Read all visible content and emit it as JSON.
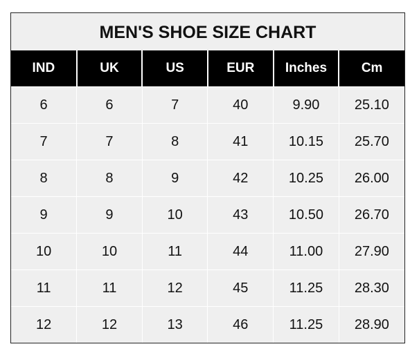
{
  "chart_data": {
    "type": "table",
    "title": "MEN'S SHOE SIZE CHART",
    "columns": [
      "IND",
      "UK",
      "US",
      "EUR",
      "Inches",
      "Cm"
    ],
    "rows": [
      [
        "6",
        "6",
        "7",
        "40",
        "9.90",
        "25.10"
      ],
      [
        "7",
        "7",
        "8",
        "41",
        "10.15",
        "25.70"
      ],
      [
        "8",
        "8",
        "9",
        "42",
        "10.25",
        "26.00"
      ],
      [
        "9",
        "9",
        "10",
        "43",
        "10.50",
        "26.70"
      ],
      [
        "10",
        "10",
        "11",
        "44",
        "11.00",
        "27.90"
      ],
      [
        "11",
        "11",
        "12",
        "45",
        "11.25",
        "28.30"
      ],
      [
        "12",
        "12",
        "13",
        "46",
        "11.25",
        "28.90"
      ]
    ],
    "colors": {
      "header_bg": "#000000",
      "header_text": "#ffffff",
      "cell_bg": "#efefef",
      "grid": "#ffffff"
    }
  }
}
